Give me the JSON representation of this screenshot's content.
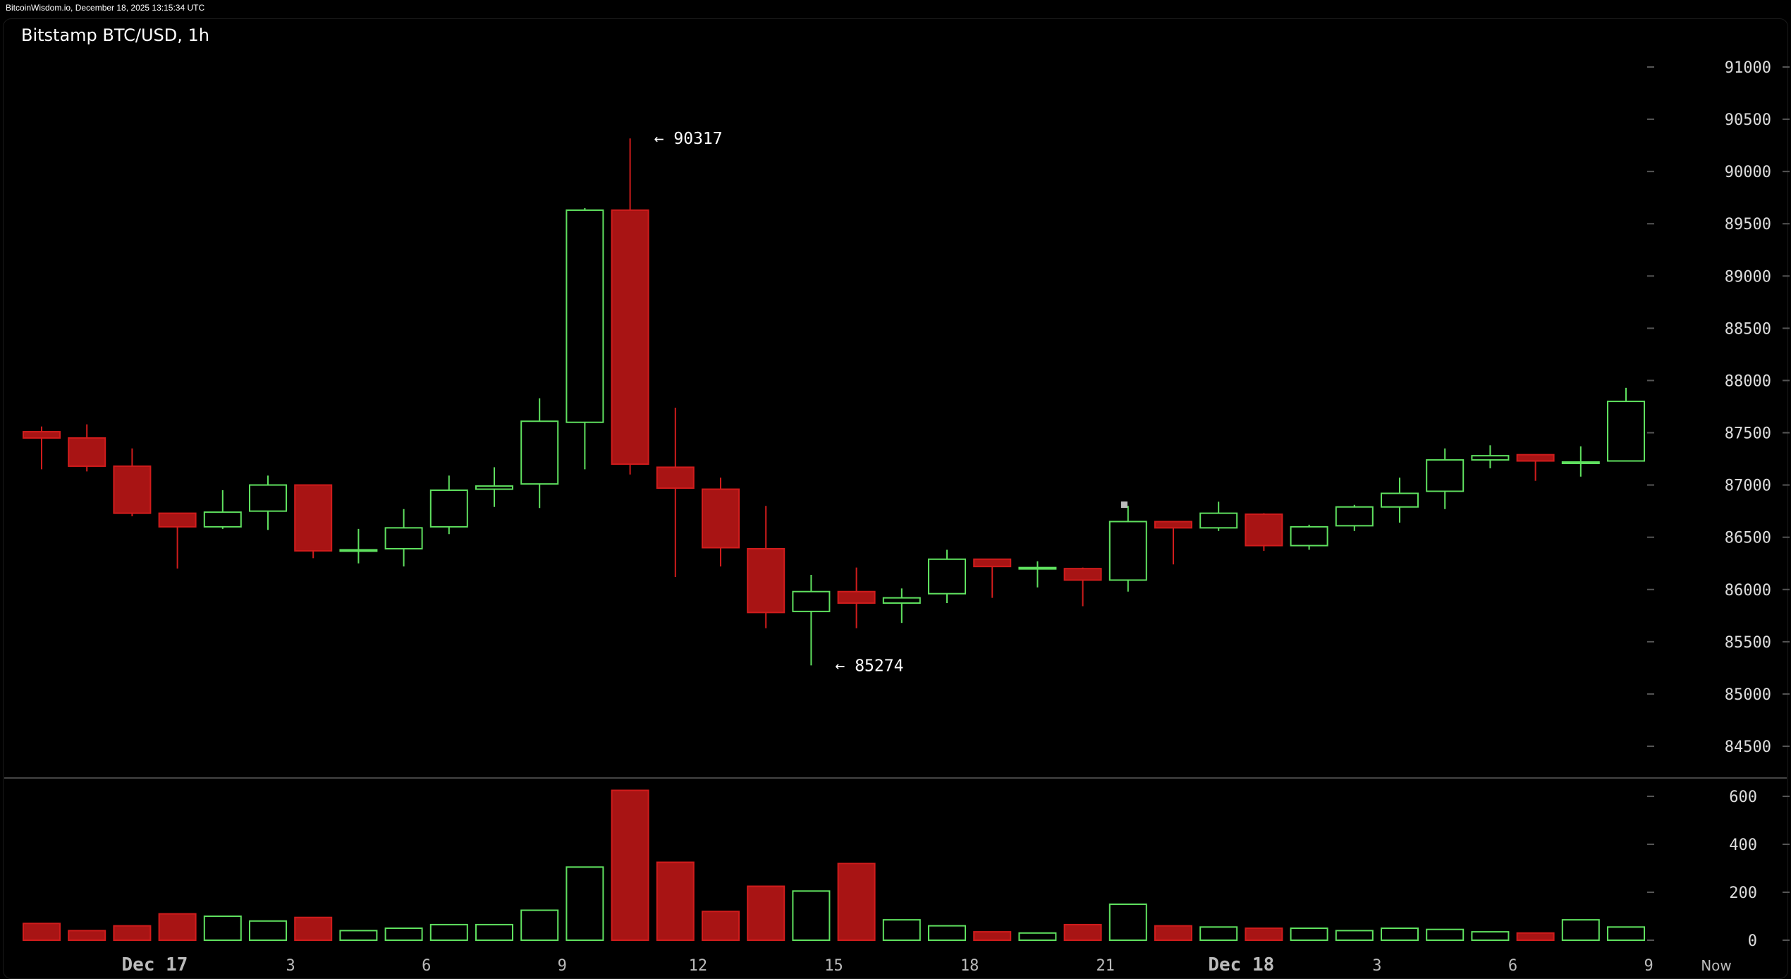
{
  "header": {
    "source": "BitcoinWisdom.io, December 18, 2025 13:15:34 UTC",
    "title": "Bitstamp BTC/USD, 1h"
  },
  "colors": {
    "up": "#5fe05f",
    "down": "#a81414",
    "down_stroke": "#d01c1c",
    "axis_tick": "#555555",
    "separator": "#444444"
  },
  "chart_data": {
    "type": "candlestick",
    "interval": "1h",
    "price_axis": {
      "ticks": [
        84500,
        85000,
        85500,
        86000,
        86500,
        87000,
        87500,
        88000,
        88500,
        89000,
        89500,
        90000,
        90500,
        91000
      ]
    },
    "volume_axis": {
      "ticks": [
        0,
        200,
        400,
        600
      ]
    },
    "x_labels": [
      {
        "label": "Dec 17",
        "slot": 3,
        "bold": true
      },
      {
        "label": "3",
        "slot": 6
      },
      {
        "label": "6",
        "slot": 9
      },
      {
        "label": "9",
        "slot": 12
      },
      {
        "label": "12",
        "slot": 15
      },
      {
        "label": "15",
        "slot": 18
      },
      {
        "label": "18",
        "slot": 21
      },
      {
        "label": "21",
        "slot": 24
      },
      {
        "label": "Dec 18",
        "slot": 27,
        "bold": true
      },
      {
        "label": "3",
        "slot": 30
      },
      {
        "label": "6",
        "slot": 33
      },
      {
        "label": "9",
        "slot": 36
      },
      {
        "label": "Now",
        "slot": 37,
        "now": true
      }
    ],
    "annotations": [
      {
        "label": "← 90317",
        "price": 90317,
        "slot": 13.5
      },
      {
        "label": "← 85274",
        "price": 85274,
        "slot": 17.5
      }
    ],
    "candles": [
      {
        "o": 87510,
        "h": 87560,
        "l": 87150,
        "c": 87450,
        "v": 70
      },
      {
        "o": 87450,
        "h": 87580,
        "l": 87130,
        "c": 87180,
        "v": 40
      },
      {
        "o": 87180,
        "h": 87350,
        "l": 86700,
        "c": 86730,
        "v": 60
      },
      {
        "o": 86730,
        "h": 86730,
        "l": 86200,
        "c": 86600,
        "v": 110
      },
      {
        "o": 86600,
        "h": 86950,
        "l": 86580,
        "c": 86740,
        "v": 100
      },
      {
        "o": 86750,
        "h": 87090,
        "l": 86570,
        "c": 87000,
        "v": 80
      },
      {
        "o": 87000,
        "h": 87000,
        "l": 86300,
        "c": 86370,
        "v": 95
      },
      {
        "o": 86370,
        "h": 86580,
        "l": 86250,
        "c": 86380,
        "v": 40
      },
      {
        "o": 86390,
        "h": 86770,
        "l": 86220,
        "c": 86590,
        "v": 50
      },
      {
        "o": 86600,
        "h": 87090,
        "l": 86530,
        "c": 86950,
        "v": 65
      },
      {
        "o": 86960,
        "h": 87170,
        "l": 86790,
        "c": 86990,
        "v": 65
      },
      {
        "o": 87010,
        "h": 87830,
        "l": 86780,
        "c": 87610,
        "v": 125
      },
      {
        "o": 87600,
        "h": 89650,
        "l": 87150,
        "c": 89630,
        "v": 305
      },
      {
        "o": 89630,
        "h": 90317,
        "l": 87100,
        "c": 87200,
        "v": 625
      },
      {
        "o": 87170,
        "h": 87740,
        "l": 86120,
        "c": 86970,
        "v": 325
      },
      {
        "o": 86960,
        "h": 87070,
        "l": 86220,
        "c": 86400,
        "v": 120
      },
      {
        "o": 86390,
        "h": 86800,
        "l": 85630,
        "c": 85780,
        "v": 225
      },
      {
        "o": 85790,
        "h": 86140,
        "l": 85274,
        "c": 85980,
        "v": 205
      },
      {
        "o": 85980,
        "h": 86210,
        "l": 85630,
        "c": 85870,
        "v": 320
      },
      {
        "o": 85870,
        "h": 86010,
        "l": 85680,
        "c": 85920,
        "v": 85
      },
      {
        "o": 85960,
        "h": 86380,
        "l": 85870,
        "c": 86290,
        "v": 60
      },
      {
        "o": 86290,
        "h": 86290,
        "l": 85920,
        "c": 86220,
        "v": 35
      },
      {
        "o": 86210,
        "h": 86270,
        "l": 86020,
        "c": 86210,
        "v": 30
      },
      {
        "o": 86200,
        "h": 86210,
        "l": 85840,
        "c": 86090,
        "v": 65
      },
      {
        "o": 86090,
        "h": 86800,
        "l": 85980,
        "c": 86650,
        "v": 150
      },
      {
        "o": 86650,
        "h": 86650,
        "l": 86240,
        "c": 86590,
        "v": 60
      },
      {
        "o": 86590,
        "h": 86840,
        "l": 86560,
        "c": 86730,
        "v": 55
      },
      {
        "o": 86720,
        "h": 86730,
        "l": 86370,
        "c": 86420,
        "v": 50
      },
      {
        "o": 86420,
        "h": 86620,
        "l": 86380,
        "c": 86600,
        "v": 50
      },
      {
        "o": 86610,
        "h": 86810,
        "l": 86560,
        "c": 86790,
        "v": 40
      },
      {
        "o": 86790,
        "h": 87070,
        "l": 86640,
        "c": 86920,
        "v": 50
      },
      {
        "o": 86940,
        "h": 87350,
        "l": 86770,
        "c": 87240,
        "v": 45
      },
      {
        "o": 87240,
        "h": 87380,
        "l": 87160,
        "c": 87280,
        "v": 35
      },
      {
        "o": 87290,
        "h": 87290,
        "l": 87040,
        "c": 87230,
        "v": 30
      },
      {
        "o": 87220,
        "h": 87370,
        "l": 87080,
        "c": 87220,
        "v": 85
      },
      {
        "o": 87230,
        "h": 87930,
        "l": 87230,
        "c": 87800,
        "v": 55
      }
    ]
  }
}
